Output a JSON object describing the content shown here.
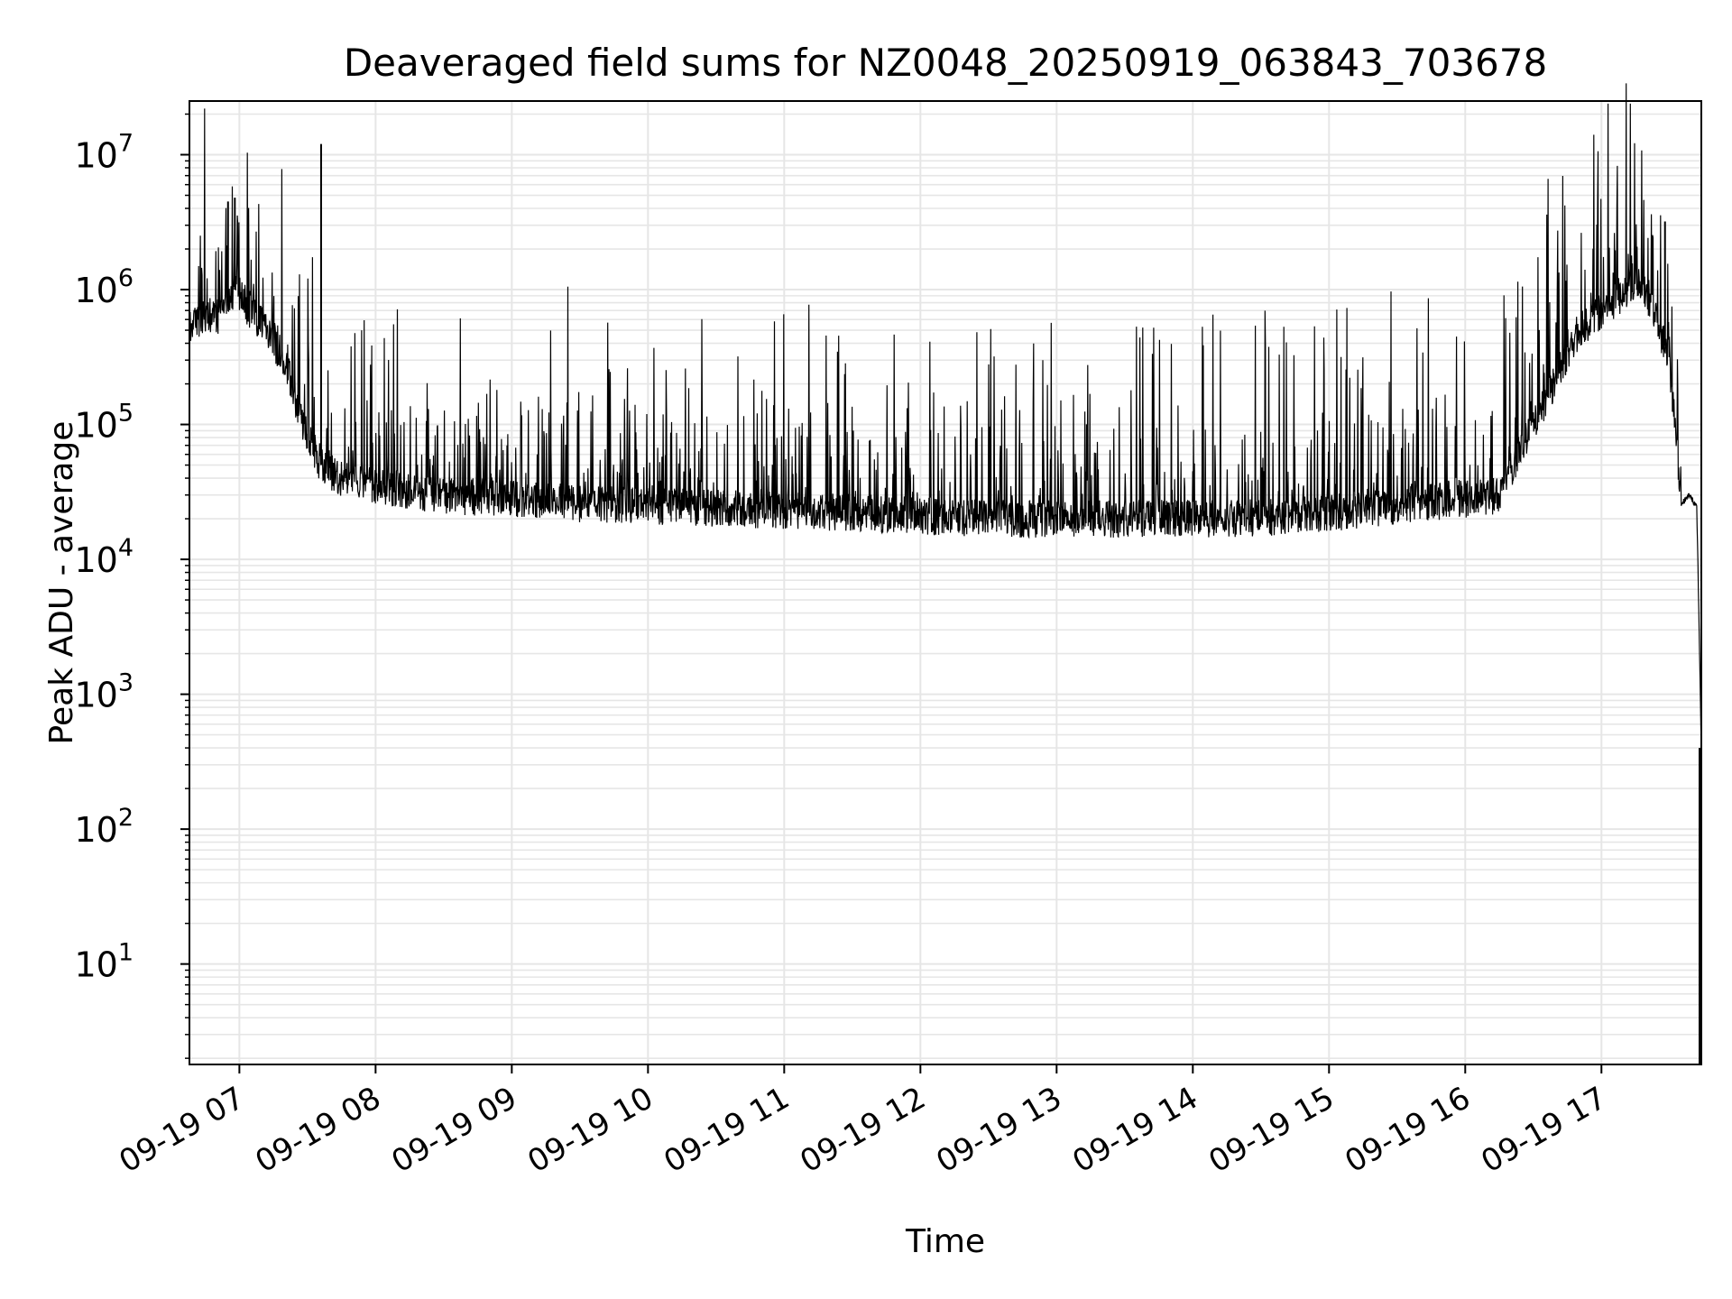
{
  "chart_data": {
    "type": "line",
    "title": "Deaveraged field sums for NZ0048_20250919_063843_703678",
    "xlabel": "Time",
    "ylabel": "Peak ADU - average",
    "yscale": "log",
    "grid": true,
    "x_ticks": [
      "09-19 07",
      "09-19 08",
      "09-19 09",
      "09-19 10",
      "09-19 11",
      "09-19 12",
      "09-19 13",
      "09-19 14",
      "09-19 15",
      "09-19 16",
      "09-19 17"
    ],
    "y_ticks": [
      {
        "base": "10",
        "exp": "1"
      },
      {
        "base": "10",
        "exp": "2"
      },
      {
        "base": "10",
        "exp": "3"
      },
      {
        "base": "10",
        "exp": "4"
      },
      {
        "base": "10",
        "exp": "5"
      },
      {
        "base": "10",
        "exp": "6"
      },
      {
        "base": "10",
        "exp": "7"
      }
    ],
    "xlim": [
      "2025-09-19 06:38",
      "2025-09-19 17:44"
    ],
    "ylim": [
      1.8,
      25000000
    ],
    "line_color": "#000000",
    "grid_color": "#e6e6e6",
    "series": [
      {
        "x": [
          "2025-09-19 06:38",
          "2025-09-19 06:45",
          "2025-09-19 06:52",
          "2025-09-19 06:55",
          "2025-09-19 06:58",
          "2025-09-19 07:05",
          "2025-09-19 07:12",
          "2025-09-19 07:20",
          "2025-09-19 07:25",
          "2025-09-19 07:30",
          "2025-09-19 07:36",
          "2025-09-19 07:45",
          "2025-09-19 08:00",
          "2025-09-19 08:30",
          "2025-09-19 09:00",
          "2025-09-19 09:30",
          "2025-09-19 10:00",
          "2025-09-19 10:30",
          "2025-09-19 11:00",
          "2025-09-19 11:30",
          "2025-09-19 12:00",
          "2025-09-19 12:30",
          "2025-09-19 13:00",
          "2025-09-19 13:30",
          "2025-09-19 14:00",
          "2025-09-19 14:30",
          "2025-09-19 15:00",
          "2025-09-19 15:30",
          "2025-09-19 16:00",
          "2025-09-19 16:15",
          "2025-09-19 16:30",
          "2025-09-19 16:50",
          "2025-09-19 17:05",
          "2025-09-19 17:15",
          "2025-09-19 17:22",
          "2025-09-19 17:30",
          "2025-09-19 17:35",
          "2025-09-19 17:38",
          "2025-09-19 17:42",
          "2025-09-19 17:44"
        ],
        "values": [
          550000,
          600000,
          620000,
          800000,
          1000000,
          700000,
          500000,
          300000,
          150000,
          80000,
          50000,
          40000,
          35000,
          30000,
          28000,
          26000,
          25000,
          24000,
          23000,
          22000,
          21000,
          20000,
          20000,
          20000,
          20000,
          20000,
          22000,
          25000,
          28000,
          30000,
          100000,
          500000,
          800000,
          1200000,
          800000,
          300000,
          25000,
          30000,
          25000,
          400
        ]
      }
    ],
    "spikes": [
      {
        "x": "2025-09-19 06:55",
        "y": 4500000
      },
      {
        "x": "2025-09-19 06:58",
        "y": 4800000
      },
      {
        "x": "2025-09-19 07:36",
        "y": 12000000
      },
      {
        "x": "2025-09-19 17:28",
        "y": 3200000
      }
    ]
  }
}
